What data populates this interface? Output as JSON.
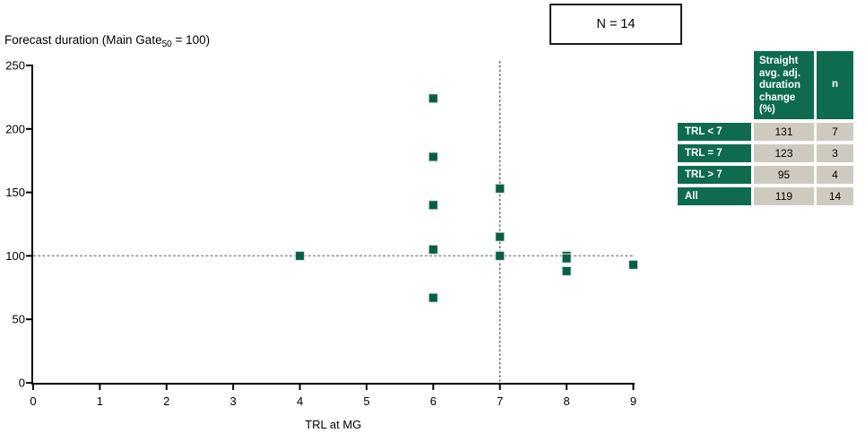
{
  "title": {
    "prefix": "Forecast duration (Main Gate",
    "sub": "50",
    "suffix": " = 100)"
  },
  "n_box": {
    "label": "N = 14"
  },
  "chart_data": {
    "type": "scatter",
    "title": "Forecast duration (Main Gate50 = 100)",
    "xlabel": "TRL at MG",
    "ylabel": "Forecast duration (Main Gate50 = 100)",
    "xlim": [
      0,
      9
    ],
    "ylim": [
      0,
      250
    ],
    "x_ticks": [
      0,
      1,
      2,
      3,
      4,
      5,
      6,
      7,
      8,
      9
    ],
    "y_ticks": [
      0,
      50,
      100,
      150,
      200,
      250
    ],
    "grid": false,
    "n": 14,
    "reference_lines": {
      "horizontal_y": 100,
      "vertical_x": 7
    },
    "points": [
      {
        "x": 4,
        "y": 100
      },
      {
        "x": 6,
        "y": 224
      },
      {
        "x": 6,
        "y": 178
      },
      {
        "x": 6,
        "y": 140
      },
      {
        "x": 6,
        "y": 105
      },
      {
        "x": 6,
        "y": 105
      },
      {
        "x": 6,
        "y": 67
      },
      {
        "x": 7,
        "y": 153
      },
      {
        "x": 7,
        "y": 115
      },
      {
        "x": 7,
        "y": 100
      },
      {
        "x": 8,
        "y": 100
      },
      {
        "x": 8,
        "y": 98
      },
      {
        "x": 8,
        "y": 88
      },
      {
        "x": 9,
        "y": 93
      }
    ],
    "marker": {
      "shape": "square",
      "size": 10,
      "color": "#0b5d47"
    }
  },
  "table": {
    "header": {
      "col1": "",
      "col2": "Straight avg. adj. duration change (%)",
      "col3": "n"
    },
    "rows": [
      {
        "label": "TRL < 7",
        "value": "131",
        "n": "7"
      },
      {
        "label": "TRL = 7",
        "value": "123",
        "n": "3"
      },
      {
        "label": "TRL > 7",
        "value": "95",
        "n": "4"
      },
      {
        "label": "All",
        "value": "119",
        "n": "14"
      }
    ]
  },
  "colors": {
    "accent_green": "#0e6b4f",
    "marker_green": "#0b5d47",
    "cell_bg": "#cecabf",
    "h_ref_line": "#8f8f8f",
    "v_ref_line": "#4f4f4f",
    "axis": "#000000",
    "background": "#ffffff"
  }
}
